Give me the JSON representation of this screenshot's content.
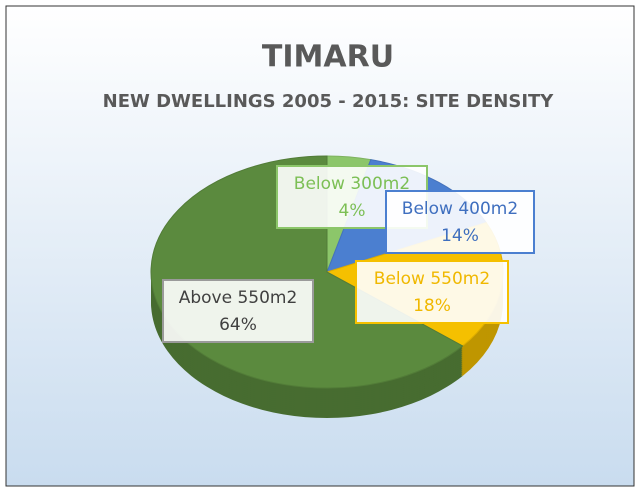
{
  "chart_data": {
    "type": "pie",
    "title": "TIMARU",
    "subtitle": "NEW DWELLINGS 2005 - 2015: SITE DENSITY",
    "categories": [
      "Below 300m2",
      "Below 400m2",
      "Below 550m2",
      "Above 550m2"
    ],
    "values": [
      4,
      14,
      18,
      64
    ],
    "value_labels": [
      "4%",
      "14%",
      "18%",
      "64%"
    ],
    "colors": [
      "#8cc66a",
      "#4b7fd0",
      "#f5c000",
      "#5b8a3e"
    ]
  }
}
